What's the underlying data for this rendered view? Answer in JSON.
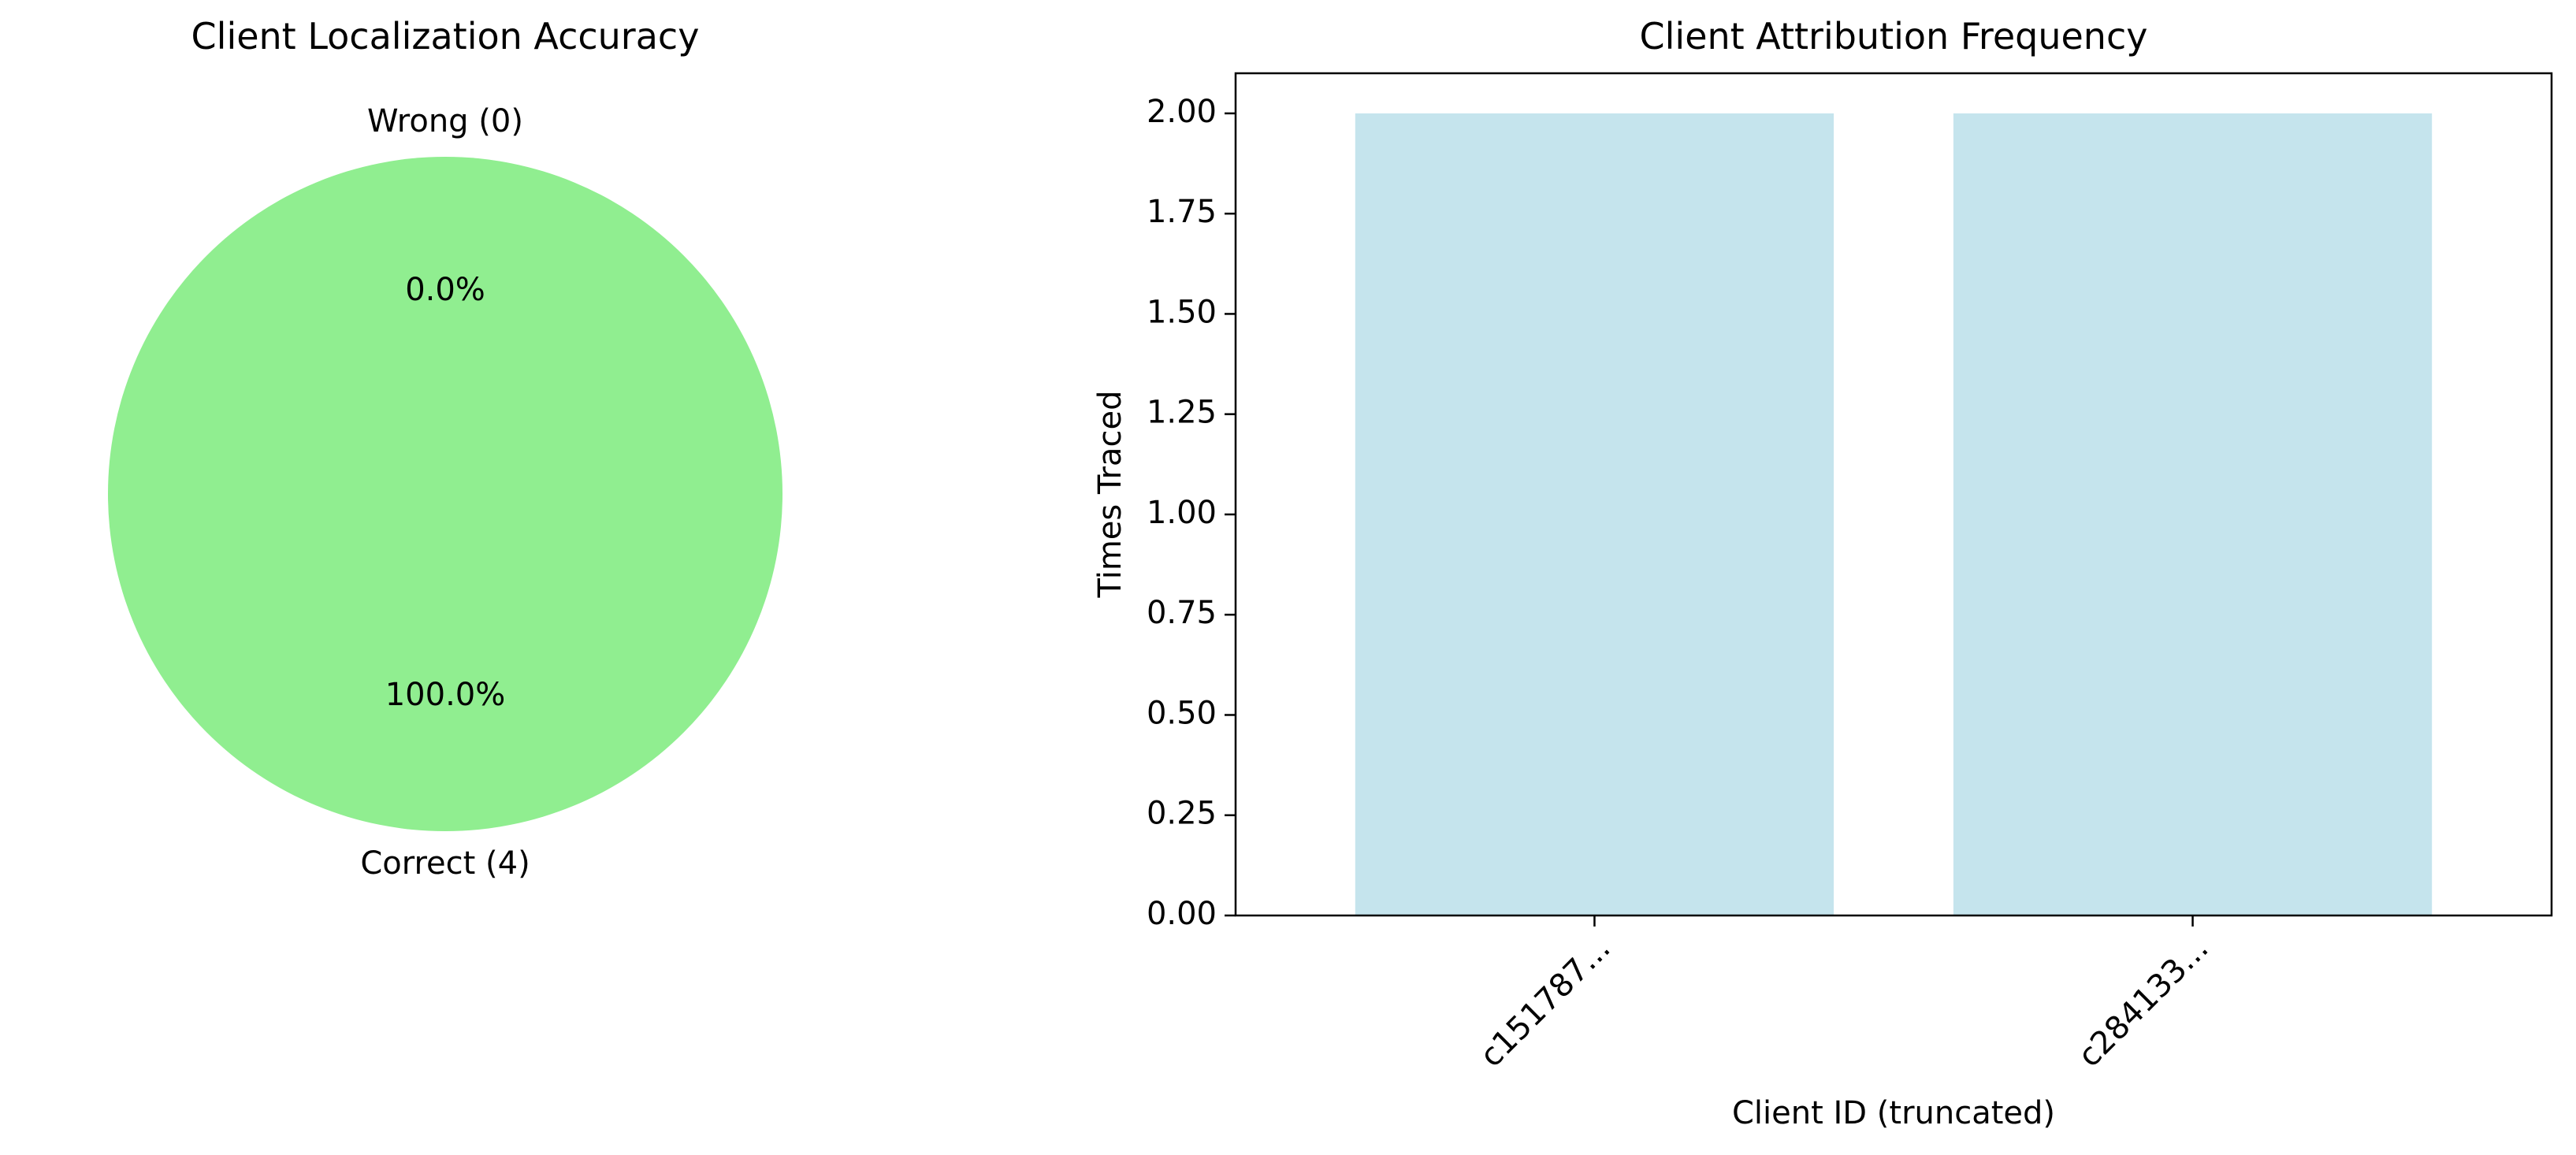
{
  "chart_data": [
    {
      "type": "pie",
      "title": "Client Localization Accuracy",
      "slices": [
        {
          "label": "Correct (4)",
          "value": 4,
          "pct_label": "100.0%",
          "color": "#90ee90"
        },
        {
          "label": "Wrong (0)",
          "value": 0,
          "pct_label": "0.0%",
          "color": "#f08080"
        }
      ],
      "start_angle_deg": 90
    },
    {
      "type": "bar",
      "title": "Client Attribution Frequency",
      "xlabel": "Client ID (truncated)",
      "ylabel": "Times Traced",
      "categories": [
        "c151787...",
        "c284133..."
      ],
      "values": [
        2,
        2
      ],
      "ylim": [
        0,
        2.1
      ],
      "yticks": [
        "0.00",
        "0.25",
        "0.50",
        "0.75",
        "1.00",
        "1.25",
        "1.50",
        "1.75",
        "2.00"
      ],
      "bar_color": "#add8e6",
      "grid": false
    }
  ]
}
